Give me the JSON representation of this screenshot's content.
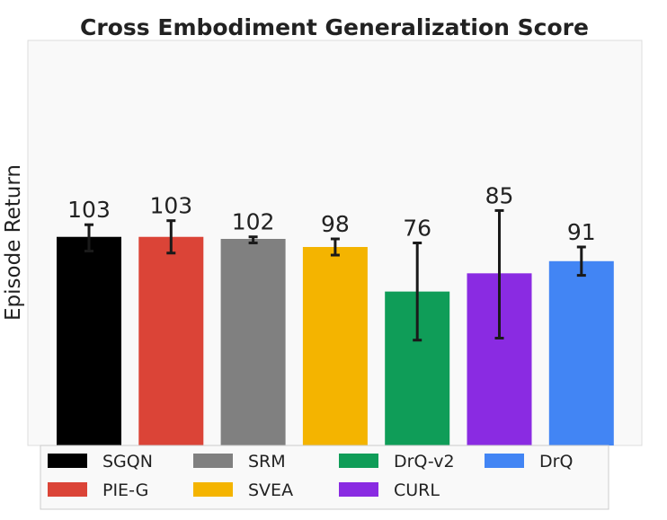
{
  "chart_data": {
    "type": "bar",
    "title": "Cross Embodiment Generalization Score",
    "xlabel": "",
    "ylabel": "Episode Return",
    "ylim": [
      0,
      200
    ],
    "grid": false,
    "legend_position": "bottom",
    "categories": [
      "SGQN",
      "PIE-G",
      "SRM",
      "SVEA",
      "DrQ-v2",
      "CURL",
      "DrQ"
    ],
    "values": [
      103,
      103,
      102,
      98,
      76,
      85,
      91
    ],
    "error_low": [
      96,
      95,
      100,
      94,
      52,
      53,
      84
    ],
    "error_high": [
      109,
      111,
      103,
      102,
      100,
      116,
      98
    ],
    "value_labels": [
      "103",
      "103",
      "102",
      "98",
      "76",
      "85",
      "91"
    ],
    "colors": [
      "#000000",
      "#db4437",
      "#808080",
      "#f4b400",
      "#0f9d58",
      "#8a2be2",
      "#4285f4"
    ],
    "legend_order": [
      "SGQN",
      "SRM",
      "DrQ-v2",
      "DrQ",
      "PIE-G",
      "SVEA",
      "CURL"
    ]
  }
}
